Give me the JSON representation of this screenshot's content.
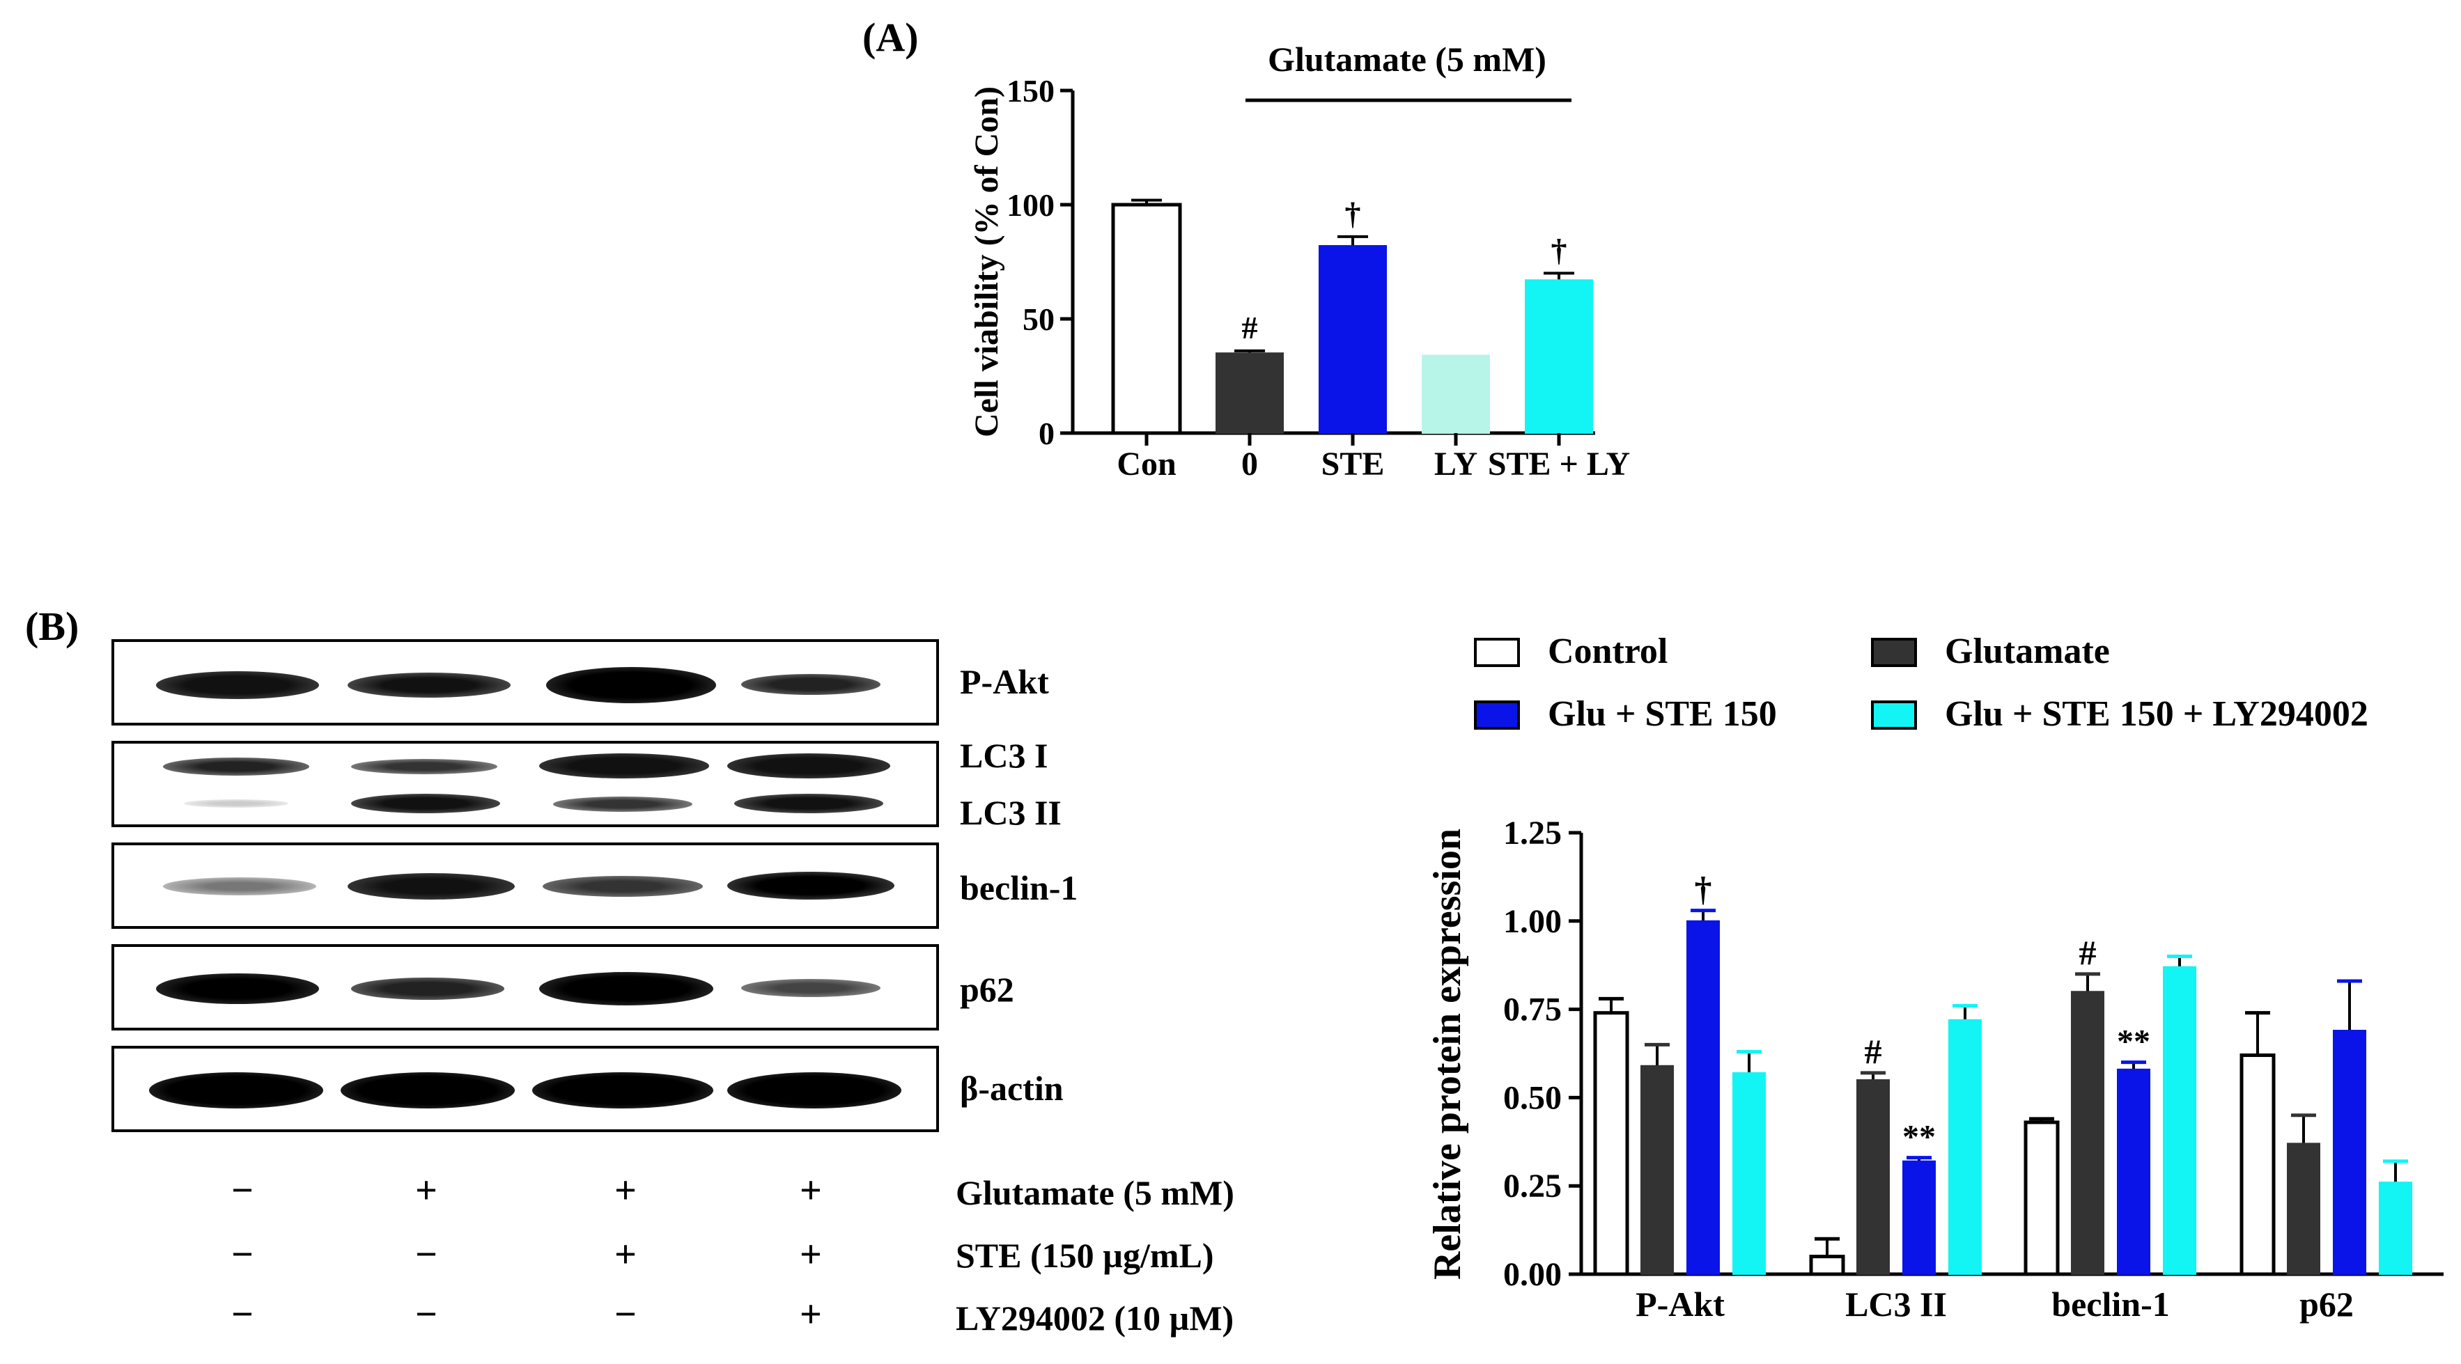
{
  "panel_a_label": "(A)",
  "panel_b_label": "(B)",
  "blot": {
    "rows": [
      {
        "labels": [
          "P-Akt"
        ]
      },
      {
        "labels": [
          "LC3 I",
          "LC3 II"
        ]
      },
      {
        "labels": [
          "beclin-1"
        ]
      },
      {
        "labels": [
          "p62"
        ]
      },
      {
        "labels": [
          "β-actin"
        ]
      }
    ],
    "conditions": [
      {
        "label": "Glutamate (5 mM)",
        "signs": [
          "−",
          "+",
          "+",
          "+"
        ]
      },
      {
        "label": "STE (150 µg/mL)",
        "signs": [
          "−",
          "−",
          "+",
          "+"
        ]
      },
      {
        "label": "LY294002 (10 µM)",
        "signs": [
          "−",
          "−",
          "−",
          "+"
        ]
      }
    ]
  },
  "legend": [
    {
      "label": "Control",
      "color": "#ffffff"
    },
    {
      "label": "Glutamate",
      "color": "#333333"
    },
    {
      "label": "Glu + STE 150",
      "color": "#0a14e8"
    },
    {
      "label": "Glu + STE 150 + LY294002",
      "color": "#13f4f4"
    }
  ],
  "chart_data": [
    {
      "type": "bar",
      "title": "Glutamate (5 mM)",
      "xlabel": "",
      "ylabel": "Cell viability (% of Con)",
      "ylim": [
        0,
        150
      ],
      "yticks": [
        "0",
        "50",
        "100",
        "150"
      ],
      "categories": [
        "Con",
        "0",
        "STE",
        "LY",
        "STE + LY"
      ],
      "values": [
        100,
        35,
        82,
        34,
        67
      ],
      "errors": [
        2,
        1,
        4,
        0,
        3
      ],
      "colors": [
        "#ffffff",
        "#333333",
        "#0a14e8",
        "#b6f5e8",
        "#13f4f4"
      ],
      "annotations": [
        "",
        "#",
        "†",
        "",
        "†"
      ]
    },
    {
      "type": "bar",
      "title": "",
      "xlabel": "",
      "ylabel": "Relative protein expression",
      "ylim": [
        0,
        1.25
      ],
      "yticks": [
        "0.00",
        "0.25",
        "0.50",
        "0.75",
        "1.00",
        "1.25"
      ],
      "categories": [
        "P-Akt",
        "LC3 II",
        "beclin-1",
        "p62"
      ],
      "series": [
        {
          "name": "Control",
          "values": [
            0.74,
            0.05,
            0.43,
            0.62
          ],
          "errors": [
            0.04,
            0.05,
            0.01,
            0.12
          ],
          "annotations": [
            "",
            "",
            "",
            ""
          ]
        },
        {
          "name": "Glutamate",
          "values": [
            0.59,
            0.55,
            0.8,
            0.37
          ],
          "errors": [
            0.06,
            0.02,
            0.05,
            0.08
          ],
          "annotations": [
            "",
            "#",
            "#",
            ""
          ]
        },
        {
          "name": "Glu + STE 150",
          "values": [
            1.0,
            0.32,
            0.58,
            0.69
          ],
          "errors": [
            0.03,
            0.01,
            0.02,
            0.14
          ],
          "annotations": [
            "†",
            "**",
            "**",
            ""
          ]
        },
        {
          "name": "Glu + STE 150 + LY294002",
          "values": [
            0.57,
            0.72,
            0.87,
            0.26
          ],
          "errors": [
            0.06,
            0.04,
            0.03,
            0.06
          ],
          "annotations": [
            "",
            "",
            "",
            ""
          ]
        }
      ]
    }
  ]
}
